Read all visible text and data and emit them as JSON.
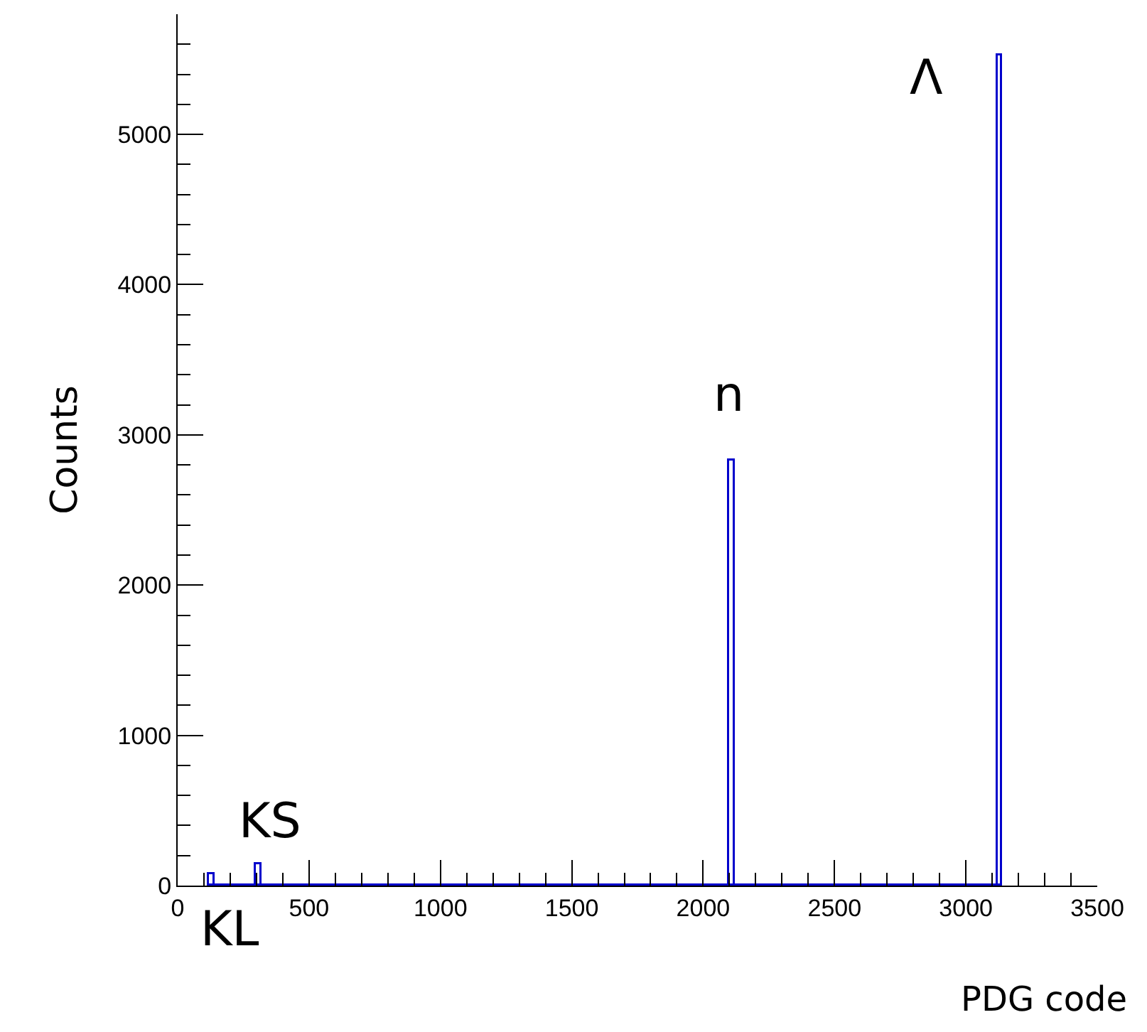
{
  "chart_data": {
    "type": "histogram",
    "xlabel": "PDG code",
    "ylabel": "Counts",
    "bins": [
      120,
      140,
      300,
      320,
      2100,
      2120,
      3120,
      3140
    ],
    "values": [
      80,
      0,
      140,
      0,
      2830,
      0,
      5530
    ],
    "color": "#0000cc",
    "xlim": [
      0,
      3500
    ],
    "xticks": [
      0,
      500,
      1000,
      1500,
      2000,
      2500,
      3000,
      3500
    ],
    "ylim": [
      0,
      5800
    ],
    "yticks": [
      0,
      1000,
      2000,
      3000,
      4000,
      5000
    ],
    "grid": false,
    "annotations": [
      "KS",
      "KL",
      "n",
      "Λ"
    ]
  }
}
